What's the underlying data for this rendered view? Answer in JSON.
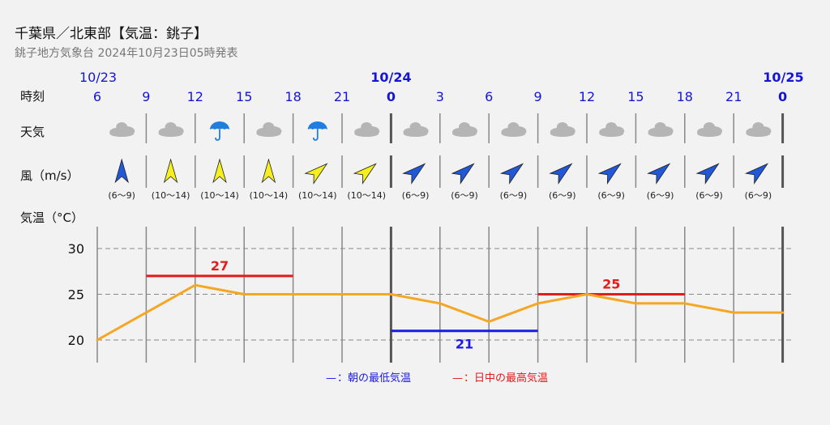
{
  "header": {
    "title": "千葉県／北東部【気温：銚子】",
    "subtitle": "銚子地方気象台 2024年10月23日05時発表"
  },
  "rows": {
    "time": "時刻",
    "weather": "天気",
    "wind": "風（m/s）",
    "temp": "気温（°C）"
  },
  "legend": {
    "min_dash": "—",
    "min_text": "：朝の最低気温",
    "max_dash": "—",
    "max_text": "：日中の最高気温"
  },
  "colors": {
    "time_label": "#1515d8",
    "temp_line": "#f5a623",
    "max_line": "#e31b1b",
    "min_line": "#1a1ae6",
    "grid": "#888888",
    "day_divider": "#555555",
    "cloud": "#b5b5b5",
    "umbrella": "#1f7fe0",
    "arrow_blue": "#2158d8",
    "arrow_yellow": "#f5ef1f"
  },
  "chart_data": {
    "type": "line",
    "slots": [
      {
        "hour": "6",
        "date": "10/23",
        "weather": "cloud-icon",
        "wind_dir_deg": 0,
        "wind_color": "blue",
        "wind_range": "(6〜9)",
        "temp": 20
      },
      {
        "hour": "9",
        "date": "",
        "weather": "cloud-icon",
        "wind_dir_deg": 0,
        "wind_color": "yellow",
        "wind_range": "(10〜14)",
        "temp": 23
      },
      {
        "hour": "12",
        "date": "",
        "weather": "umbrella-icon",
        "wind_dir_deg": 0,
        "wind_color": "yellow",
        "wind_range": "(10〜14)",
        "temp": 26
      },
      {
        "hour": "15",
        "date": "",
        "weather": "cloud-icon",
        "wind_dir_deg": 0,
        "wind_color": "yellow",
        "wind_range": "(10〜14)",
        "temp": 25
      },
      {
        "hour": "18",
        "date": "",
        "weather": "umbrella-icon",
        "wind_dir_deg": 50,
        "wind_color": "yellow",
        "wind_range": "(10〜14)",
        "temp": 25
      },
      {
        "hour": "21",
        "date": "",
        "weather": "cloud-icon",
        "wind_dir_deg": 50,
        "wind_color": "yellow",
        "wind_range": "(10〜14)",
        "temp": 25
      },
      {
        "hour": "0",
        "date": "10/24",
        "weather": "cloud-icon",
        "wind_dir_deg": 50,
        "wind_color": "blue",
        "wind_range": "(6〜9)",
        "temp": 25
      },
      {
        "hour": "3",
        "date": "",
        "weather": "cloud-icon",
        "wind_dir_deg": 50,
        "wind_color": "blue",
        "wind_range": "(6〜9)",
        "temp": 24
      },
      {
        "hour": "6",
        "date": "",
        "weather": "cloud-icon",
        "wind_dir_deg": 50,
        "wind_color": "blue",
        "wind_range": "(6〜9)",
        "temp": 22
      },
      {
        "hour": "9",
        "date": "",
        "weather": "cloud-icon",
        "wind_dir_deg": 50,
        "wind_color": "blue",
        "wind_range": "(6〜9)",
        "temp": 24
      },
      {
        "hour": "12",
        "date": "",
        "weather": "cloud-icon",
        "wind_dir_deg": 50,
        "wind_color": "blue",
        "wind_range": "(6〜9)",
        "temp": 25
      },
      {
        "hour": "15",
        "date": "",
        "weather": "cloud-icon",
        "wind_dir_deg": 50,
        "wind_color": "blue",
        "wind_range": "(6〜9)",
        "temp": 24
      },
      {
        "hour": "18",
        "date": "",
        "weather": "cloud-icon",
        "wind_dir_deg": 50,
        "wind_color": "blue",
        "wind_range": "(6〜9)",
        "temp": 24
      },
      {
        "hour": "21",
        "date": "",
        "weather": "cloud-icon",
        "wind_dir_deg": 50,
        "wind_color": "blue",
        "wind_range": "(6〜9)",
        "temp": 23
      },
      {
        "hour": "0",
        "date": "10/25",
        "weather": "",
        "wind_dir_deg": null,
        "wind_color": "",
        "wind_range": "",
        "temp": 23
      }
    ],
    "day_starts": [
      6,
      14
    ],
    "ylim": [
      18,
      32
    ],
    "yticks": [
      20,
      25,
      30
    ],
    "grid": true,
    "max_temp": [
      {
        "value": 27,
        "label": "27",
        "from": 1,
        "to": 4
      },
      {
        "value": 25,
        "label": "25",
        "from": 9,
        "to": 12
      }
    ],
    "min_temp": [
      {
        "value": 21,
        "label": "21",
        "from": 6,
        "to": 9
      }
    ]
  }
}
